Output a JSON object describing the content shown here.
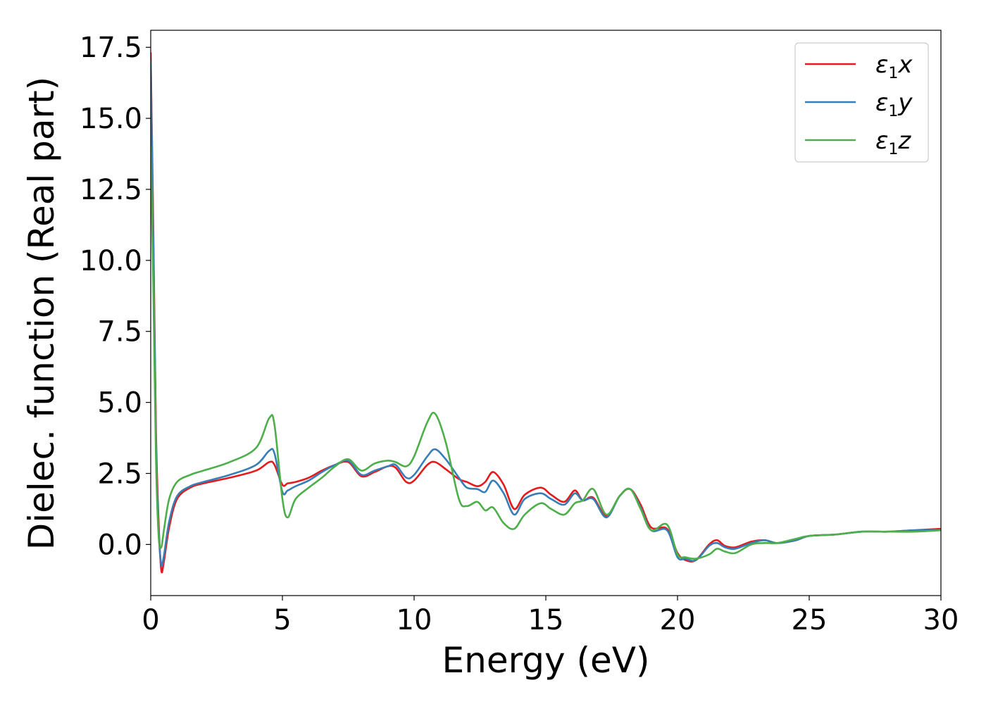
{
  "chart_data": {
    "type": "line",
    "title": "",
    "xlabel": "Energy (eV)",
    "ylabel": "Dielec. function (Real part)",
    "xlim": [
      0,
      30
    ],
    "ylim": [
      -1.8,
      18.1
    ],
    "xticks": [
      {
        "value": 0,
        "label": "0"
      },
      {
        "value": 5,
        "label": "5"
      },
      {
        "value": 10,
        "label": "10"
      },
      {
        "value": 15,
        "label": "15"
      },
      {
        "value": 20,
        "label": "20"
      },
      {
        "value": 25,
        "label": "25"
      },
      {
        "value": 30,
        "label": "30"
      }
    ],
    "yticks": [
      {
        "value": 0,
        "label": "0.0"
      },
      {
        "value": 2.5,
        "label": "2.5"
      },
      {
        "value": 5,
        "label": "5.0"
      },
      {
        "value": 7.5,
        "label": "7.5"
      },
      {
        "value": 10,
        "label": "10.0"
      },
      {
        "value": 12.5,
        "label": "12.5"
      },
      {
        "value": 15,
        "label": "15.0"
      },
      {
        "value": 17.5,
        "label": "17.5"
      }
    ],
    "grid": false,
    "legend_position": "top-right",
    "series": [
      {
        "name": "ε1x",
        "legend": {
          "symbol": "ε",
          "sub": "1",
          "var": "x"
        },
        "color": "#e41a1c",
        "x": [
          0,
          0.1,
          0.2,
          0.3,
          0.4,
          0.5,
          0.7,
          1.0,
          1.5,
          2.0,
          3.0,
          4.0,
          4.5,
          4.7,
          5.0,
          5.2,
          5.5,
          6.0,
          6.5,
          7.0,
          7.5,
          8.0,
          8.5,
          9.0,
          9.3,
          9.7,
          10.0,
          10.5,
          10.8,
          11.2,
          11.7,
          12.0,
          12.4,
          12.7,
          13.0,
          13.4,
          13.8,
          14.2,
          14.8,
          15.2,
          15.7,
          16.1,
          16.4,
          16.8,
          17.3,
          17.8,
          18.2,
          18.6,
          19.0,
          19.6,
          20.0,
          20.3,
          20.7,
          21.2,
          21.5,
          21.8,
          22.2,
          22.8,
          23.3,
          23.8,
          24.5,
          25.0,
          26.0,
          27.0,
          28.0,
          29.0,
          30.0
        ],
        "values": [
          17.3,
          11.0,
          4.0,
          0.8,
          -0.9,
          -0.6,
          0.6,
          1.6,
          2.0,
          2.15,
          2.35,
          2.6,
          2.9,
          2.8,
          2.1,
          2.15,
          2.2,
          2.35,
          2.6,
          2.8,
          2.9,
          2.4,
          2.55,
          2.75,
          2.7,
          2.2,
          2.25,
          2.8,
          2.9,
          2.65,
          2.3,
          2.2,
          2.05,
          2.2,
          2.55,
          2.1,
          1.25,
          1.75,
          2.0,
          1.75,
          1.5,
          1.9,
          1.55,
          1.65,
          1.0,
          1.7,
          1.95,
          1.4,
          0.6,
          0.55,
          -0.3,
          -0.55,
          -0.55,
          0.0,
          0.15,
          -0.05,
          -0.1,
          0.1,
          0.15,
          0.05,
          0.15,
          0.3,
          0.35,
          0.45,
          0.45,
          0.5,
          0.55
        ]
      },
      {
        "name": "ε1y",
        "legend": {
          "symbol": "ε",
          "sub": "1",
          "var": "y"
        },
        "color": "#377eb8",
        "x": [
          0,
          0.1,
          0.2,
          0.3,
          0.4,
          0.5,
          0.7,
          1.0,
          1.5,
          2.0,
          3.0,
          4.0,
          4.5,
          4.7,
          5.0,
          5.2,
          5.5,
          6.0,
          6.5,
          7.0,
          7.5,
          8.0,
          8.5,
          9.0,
          9.3,
          9.7,
          10.0,
          10.5,
          10.8,
          11.2,
          11.7,
          12.0,
          12.4,
          12.7,
          13.0,
          13.4,
          13.8,
          14.2,
          14.8,
          15.2,
          15.7,
          16.1,
          16.4,
          16.8,
          17.3,
          17.8,
          18.2,
          18.6,
          19.0,
          19.6,
          20.0,
          20.3,
          20.7,
          21.2,
          21.5,
          21.8,
          22.2,
          22.8,
          23.3,
          23.8,
          24.5,
          25.0,
          26.0,
          27.0,
          28.0,
          29.0,
          30.0
        ],
        "values": [
          17.0,
          10.5,
          3.5,
          0.5,
          -0.7,
          -0.4,
          0.8,
          1.7,
          2.05,
          2.2,
          2.45,
          2.8,
          3.3,
          3.2,
          1.85,
          1.9,
          2.05,
          2.25,
          2.55,
          2.8,
          2.95,
          2.45,
          2.6,
          2.75,
          2.8,
          2.35,
          2.45,
          3.1,
          3.35,
          3.0,
          2.35,
          2.0,
          1.95,
          1.85,
          2.25,
          1.8,
          1.05,
          1.6,
          1.8,
          1.6,
          1.4,
          1.8,
          1.55,
          1.6,
          0.95,
          1.7,
          1.95,
          1.3,
          0.5,
          0.5,
          -0.45,
          -0.5,
          -0.55,
          -0.05,
          0.05,
          -0.1,
          -0.15,
          0.05,
          0.15,
          0.05,
          0.15,
          0.3,
          0.35,
          0.45,
          0.45,
          0.5,
          0.5
        ]
      },
      {
        "name": "ε1z",
        "legend": {
          "symbol": "ε",
          "sub": "1",
          "var": "z"
        },
        "color": "#4daf4a",
        "x": [
          0,
          0.1,
          0.2,
          0.3,
          0.4,
          0.5,
          0.7,
          1.0,
          1.5,
          2.0,
          3.0,
          4.0,
          4.5,
          4.7,
          5.0,
          5.2,
          5.5,
          6.0,
          6.5,
          7.0,
          7.5,
          8.0,
          8.5,
          9.0,
          9.3,
          9.7,
          10.0,
          10.5,
          10.8,
          11.2,
          11.7,
          12.0,
          12.4,
          12.7,
          13.0,
          13.4,
          13.8,
          14.2,
          14.8,
          15.2,
          15.7,
          16.1,
          16.4,
          16.8,
          17.3,
          17.8,
          18.2,
          18.6,
          19.0,
          19.6,
          20.0,
          20.3,
          20.7,
          21.2,
          21.5,
          21.8,
          22.2,
          22.8,
          23.3,
          23.8,
          24.5,
          25.0,
          26.0,
          27.0,
          28.0,
          29.0,
          30.0
        ],
        "values": [
          14.0,
          9.0,
          3.0,
          0.3,
          -0.1,
          0.5,
          1.6,
          2.2,
          2.45,
          2.6,
          2.9,
          3.4,
          4.45,
          4.2,
          1.6,
          0.95,
          1.6,
          2.0,
          2.35,
          2.75,
          3.0,
          2.6,
          2.85,
          2.95,
          2.9,
          2.75,
          3.1,
          4.3,
          4.6,
          3.6,
          1.6,
          1.35,
          1.5,
          1.2,
          1.3,
          0.75,
          0.55,
          1.05,
          1.45,
          1.25,
          1.05,
          1.45,
          1.55,
          1.95,
          1.05,
          1.7,
          1.95,
          1.25,
          0.5,
          0.7,
          -0.35,
          -0.45,
          -0.5,
          -0.35,
          -0.15,
          -0.25,
          -0.3,
          0.0,
          0.05,
          0.05,
          0.2,
          0.3,
          0.35,
          0.45,
          0.45,
          0.45,
          0.5
        ]
      }
    ]
  }
}
